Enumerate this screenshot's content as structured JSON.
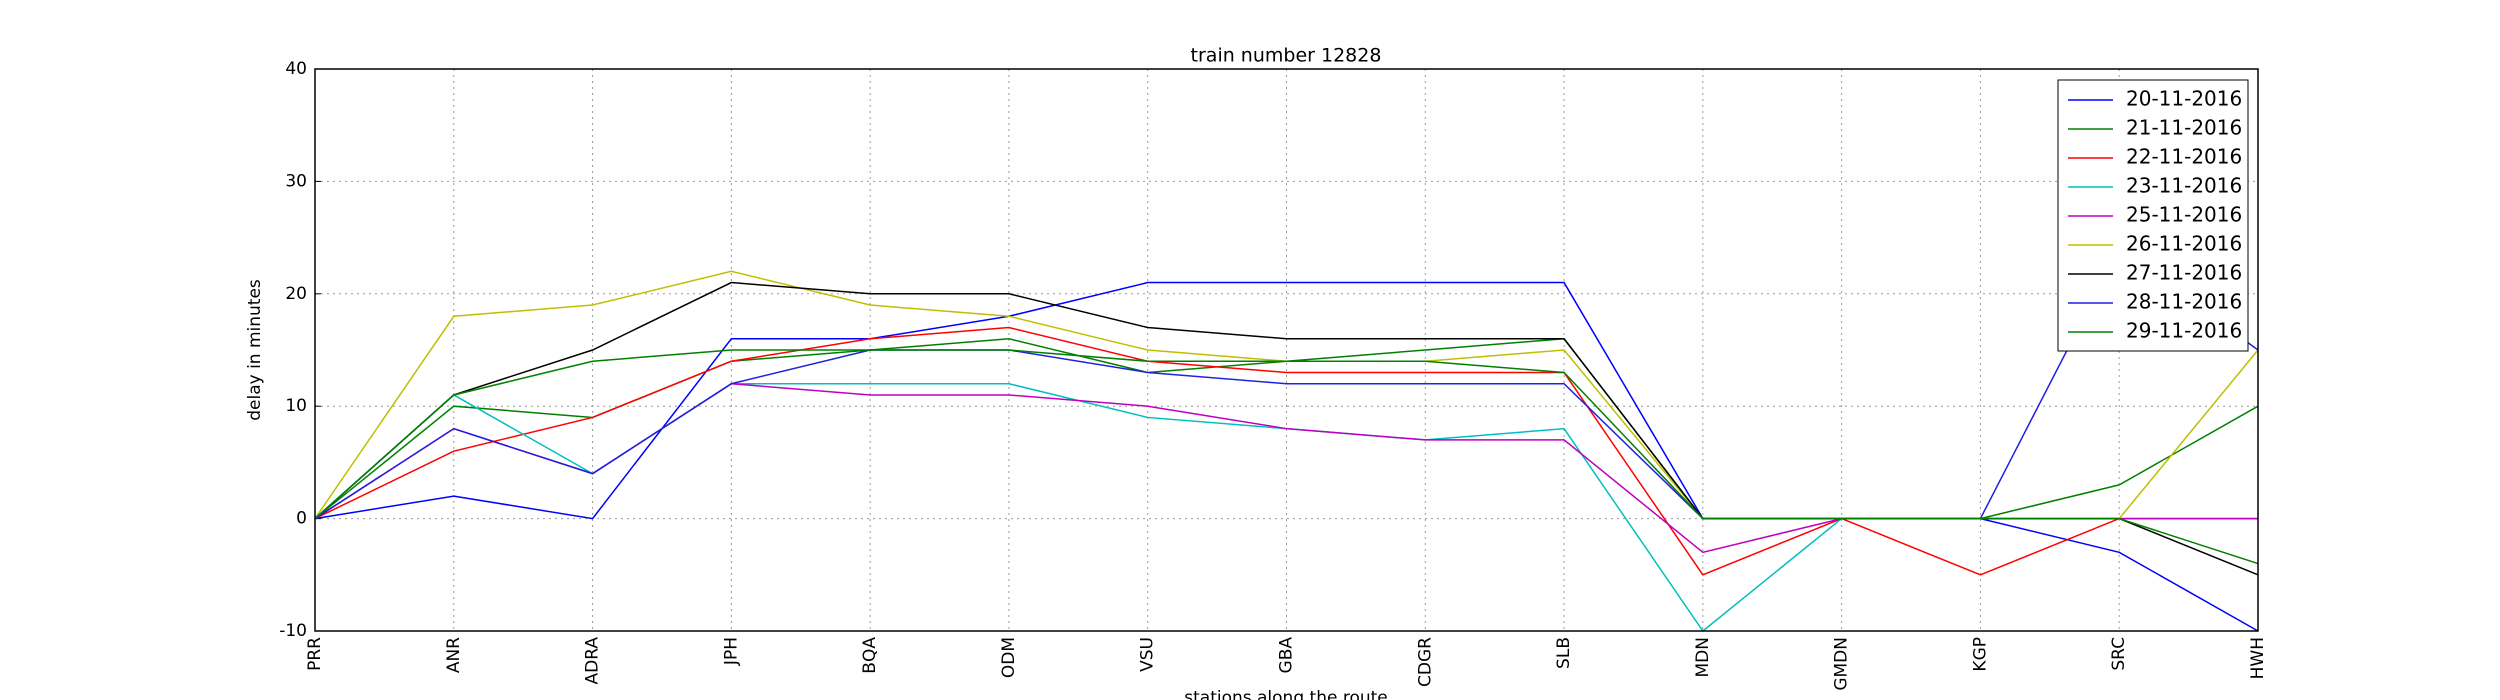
{
  "chart_data": {
    "type": "line",
    "title": "train number 12828",
    "x_label": "stations along the route",
    "y_label": "delay in minutes",
    "categories": [
      "PRR",
      "ANR",
      "ADRA",
      "JPH",
      "BQA",
      "ODM",
      "VSU",
      "GBA",
      "CDGR",
      "SLB",
      "MDN",
      "GMDN",
      "KGP",
      "SRC",
      "HWH"
    ],
    "ylim": [
      -10,
      40
    ],
    "yticks": [
      -10,
      0,
      10,
      20,
      30,
      40
    ],
    "grid": true,
    "legend": "upper right",
    "series": [
      {
        "name": "20-11-2016",
        "color": "#0000ff",
        "values": [
          0,
          2,
          0,
          16,
          16,
          18,
          21,
          21,
          21,
          21,
          0,
          0,
          0,
          -3,
          -10
        ]
      },
      {
        "name": "21-11-2016",
        "color": "#008000",
        "values": [
          0,
          10,
          9,
          14,
          15,
          16,
          13,
          14,
          15,
          16,
          0,
          0,
          0,
          3,
          10
        ]
      },
      {
        "name": "22-11-2016",
        "color": "#ff0000",
        "values": [
          0,
          6,
          9,
          14,
          16,
          17,
          14,
          13,
          13,
          13,
          -5,
          0,
          -5,
          0,
          0
        ]
      },
      {
        "name": "23-11-2016",
        "color": "#00bfbf",
        "values": [
          0,
          11,
          4,
          12,
          12,
          12,
          9,
          8,
          7,
          8,
          -10,
          0,
          0,
          0,
          0
        ]
      },
      {
        "name": "25-11-2016",
        "color": "#bf00bf",
        "values": [
          0,
          8,
          4,
          12,
          11,
          11,
          10,
          8,
          7,
          7,
          -3,
          0,
          0,
          0,
          0
        ]
      },
      {
        "name": "26-11-2016",
        "color": "#bfbf00",
        "values": [
          0,
          18,
          19,
          22,
          19,
          18,
          15,
          14,
          14,
          15,
          0,
          0,
          0,
          0,
          15
        ]
      },
      {
        "name": "27-11-2016",
        "color": "#000000",
        "values": [
          0,
          11,
          15,
          21,
          20,
          20,
          17,
          16,
          16,
          16,
          0,
          0,
          0,
          0,
          -5
        ]
      },
      {
        "name": "28-11-2016",
        "color": "#2020e0",
        "values": [
          0,
          8,
          4,
          12,
          15,
          15,
          13,
          12,
          12,
          12,
          0,
          0,
          0,
          24,
          15
        ]
      },
      {
        "name": "29-11-2016",
        "color": "#008000",
        "values": [
          0,
          11,
          14,
          15,
          15,
          15,
          14,
          14,
          14,
          13,
          0,
          0,
          0,
          0,
          -4
        ]
      }
    ]
  }
}
